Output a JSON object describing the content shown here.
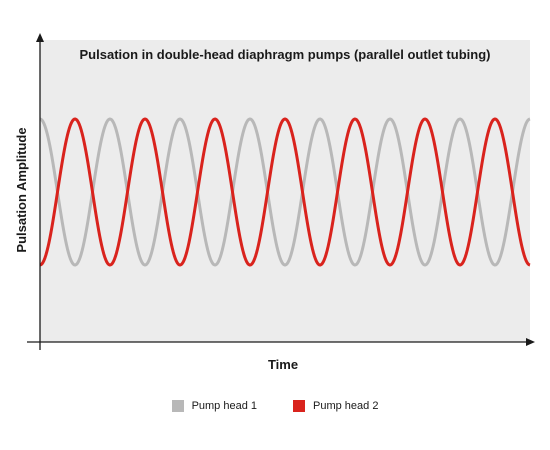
{
  "chart_data": {
    "type": "line",
    "title": "Pulsation in double-head diaphragm pumps (parallel outlet tubing)",
    "xlabel": "Time",
    "ylabel": "Pulsation Amplitude",
    "ticks_shown": false,
    "grid": false,
    "background": "#ececec",
    "legend_position": "bottom-center",
    "periods_shown": 7.0,
    "series": [
      {
        "name": "Pump head 1",
        "color": "#b8b8b8",
        "waveform": "sine",
        "phase_deg": 90,
        "amplitude": 1
      },
      {
        "name": "Pump head 2",
        "color": "#d9231d",
        "waveform": "sine",
        "phase_deg": 270,
        "amplitude": 1
      }
    ]
  }
}
